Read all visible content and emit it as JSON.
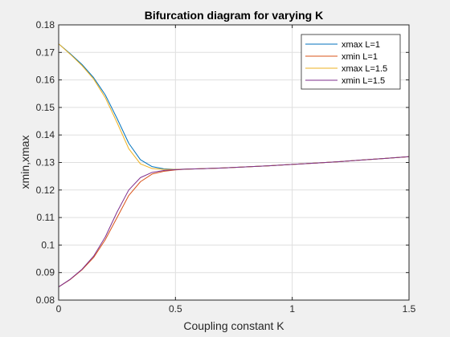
{
  "chart_data": {
    "type": "line",
    "title": "Bifurcation diagram for varying K",
    "xlabel": "Coupling constant K",
    "ylabel": "xmin,xmax",
    "xlim": [
      0,
      1.5
    ],
    "ylim": [
      0.08,
      0.18
    ],
    "xticks": [
      0,
      0.5,
      1,
      1.5
    ],
    "xtick_labels": [
      "0",
      "0.5",
      "1",
      "1.5"
    ],
    "yticks": [
      0.08,
      0.09,
      0.1,
      0.11,
      0.12,
      0.13,
      0.14,
      0.15,
      0.16,
      0.17,
      0.18
    ],
    "ytick_labels": [
      "0.08",
      "0.09",
      "0.1",
      "0.11",
      "0.12",
      "0.13",
      "0.14",
      "0.15",
      "0.16",
      "0.17",
      "0.18"
    ],
    "grid": true,
    "legend_position": "top-right",
    "series": [
      {
        "name": "xmax L=1",
        "color": "#0072bd",
        "x": [
          0,
          0.05,
          0.1,
          0.15,
          0.2,
          0.25,
          0.3,
          0.35,
          0.4,
          0.45,
          0.5,
          0.55,
          0.6,
          0.7,
          0.8,
          0.9,
          1.0,
          1.1,
          1.2,
          1.3,
          1.4,
          1.5
        ],
        "y": [
          0.1731,
          0.1695,
          0.1656,
          0.1608,
          0.1545,
          0.146,
          0.137,
          0.131,
          0.1285,
          0.1277,
          0.1275,
          0.1276,
          0.1277,
          0.128,
          0.1284,
          0.1288,
          0.1293,
          0.1298,
          0.1303,
          0.1309,
          0.1315,
          0.1321
        ]
      },
      {
        "name": "xmin L=1",
        "color": "#d95319",
        "x": [
          0,
          0.05,
          0.1,
          0.15,
          0.2,
          0.25,
          0.3,
          0.35,
          0.4,
          0.45,
          0.5,
          0.55,
          0.6,
          0.7,
          0.8,
          0.9,
          1.0,
          1.1,
          1.2,
          1.3,
          1.4,
          1.5
        ],
        "y": [
          0.0848,
          0.0875,
          0.091,
          0.0955,
          0.102,
          0.11,
          0.118,
          0.123,
          0.1258,
          0.1268,
          0.1273,
          0.1276,
          0.1277,
          0.128,
          0.1284,
          0.1288,
          0.1293,
          0.1298,
          0.1303,
          0.1309,
          0.1315,
          0.1321
        ]
      },
      {
        "name": "xmax L=1.5",
        "color": "#edb120",
        "x": [
          0,
          0.05,
          0.1,
          0.15,
          0.2,
          0.25,
          0.3,
          0.35,
          0.4,
          0.45,
          0.5,
          0.55,
          0.6,
          0.7,
          0.8,
          0.9,
          1.0,
          1.1,
          1.2,
          1.3,
          1.4,
          1.5
        ],
        "y": [
          0.1731,
          0.1693,
          0.1652,
          0.1603,
          0.1535,
          0.1445,
          0.135,
          0.1295,
          0.1278,
          0.1275,
          0.1275,
          0.1276,
          0.1277,
          0.128,
          0.1284,
          0.1288,
          0.1293,
          0.1298,
          0.1303,
          0.1309,
          0.1315,
          0.1321
        ]
      },
      {
        "name": "xmin L=1.5",
        "color": "#7e2f8e",
        "x": [
          0,
          0.05,
          0.1,
          0.15,
          0.2,
          0.25,
          0.3,
          0.35,
          0.4,
          0.45,
          0.5,
          0.55,
          0.6,
          0.7,
          0.8,
          0.9,
          1.0,
          1.1,
          1.2,
          1.3,
          1.4,
          1.5
        ],
        "y": [
          0.0848,
          0.0876,
          0.0912,
          0.096,
          0.103,
          0.112,
          0.12,
          0.1245,
          0.1264,
          0.1271,
          0.1274,
          0.1276,
          0.1277,
          0.128,
          0.1284,
          0.1288,
          0.1293,
          0.1298,
          0.1303,
          0.1309,
          0.1315,
          0.1321
        ]
      }
    ]
  }
}
